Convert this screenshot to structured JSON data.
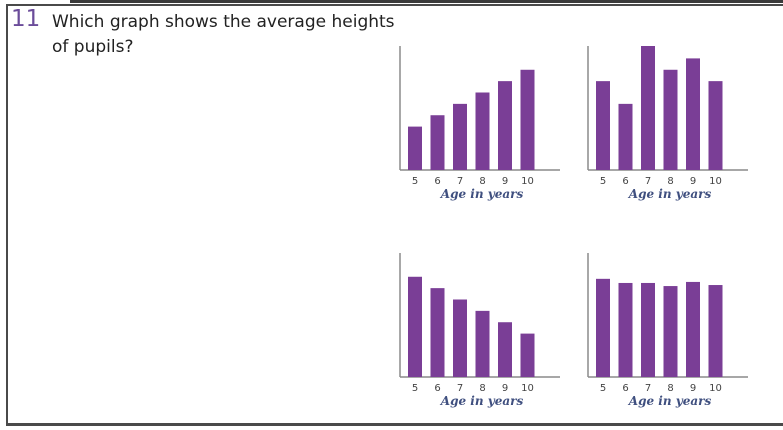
{
  "question": {
    "number": "11",
    "text": "Which graph shows the average heights of pupils?"
  },
  "colors": {
    "bar": "#7a3e96",
    "axis": "#8a8a8a",
    "tick_text": "#444444"
  },
  "chart_data": [
    {
      "type": "bar",
      "categories": [
        "5",
        "6",
        "7",
        "8",
        "9",
        "10"
      ],
      "values": [
        42,
        53,
        64,
        75,
        86,
        97
      ],
      "xlabel": "Age in years",
      "ylim": [
        0,
        120
      ]
    },
    {
      "type": "bar",
      "categories": [
        "5",
        "6",
        "7",
        "8",
        "9",
        "10"
      ],
      "values": [
        86,
        64,
        120,
        97,
        108,
        86
      ],
      "xlabel": "Age in years",
      "ylim": [
        0,
        120
      ]
    },
    {
      "type": "bar",
      "categories": [
        "5",
        "6",
        "7",
        "8",
        "9",
        "10"
      ],
      "values": [
        97,
        86,
        75,
        64,
        53,
        42
      ],
      "xlabel": "Age in years",
      "ylim": [
        0,
        120
      ]
    },
    {
      "type": "bar",
      "categories": [
        "5",
        "6",
        "7",
        "8",
        "9",
        "10"
      ],
      "values": [
        95,
        91,
        91,
        88,
        92,
        89
      ],
      "xlabel": "Age in years",
      "ylim": [
        0,
        120
      ]
    }
  ]
}
